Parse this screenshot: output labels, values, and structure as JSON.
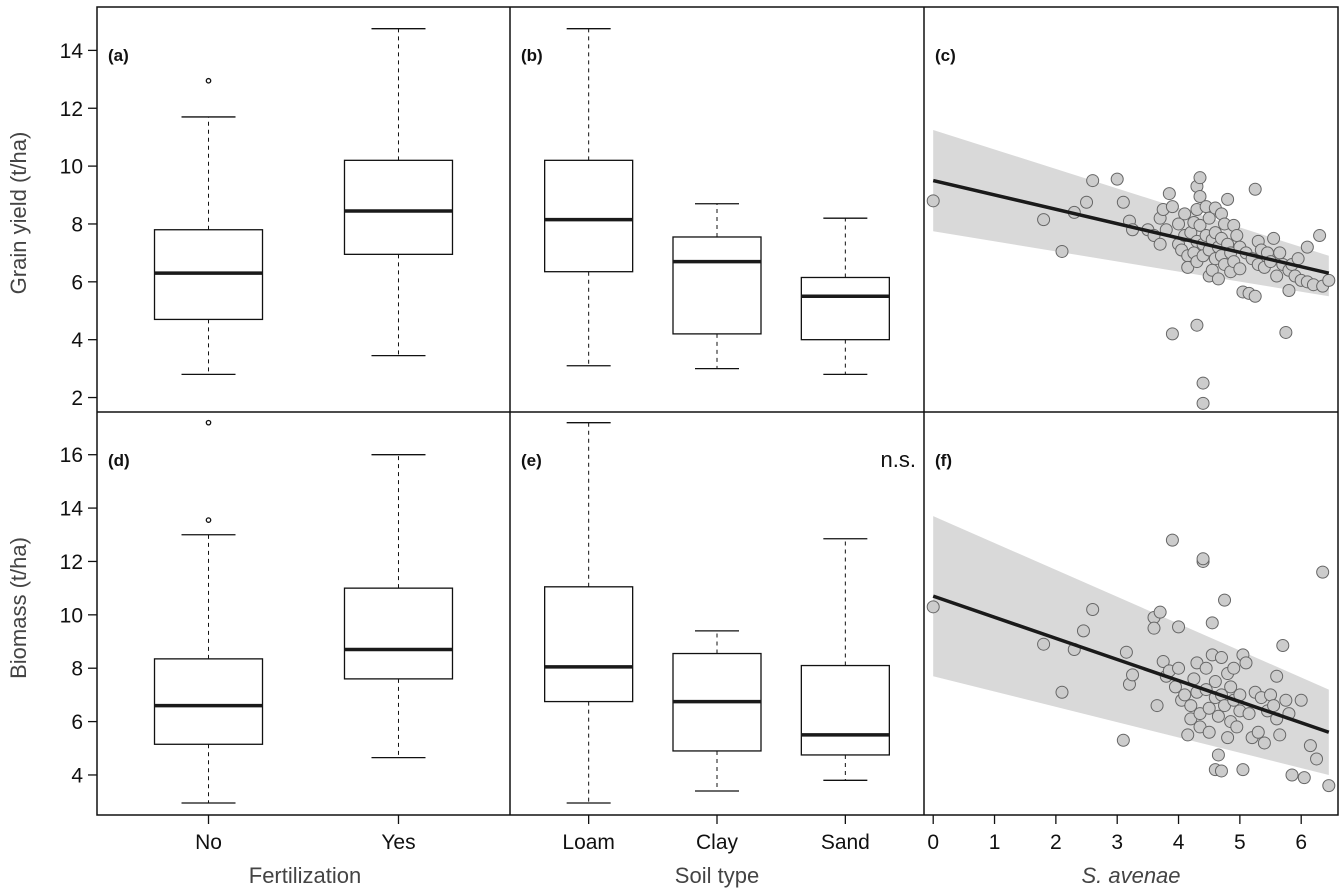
{
  "row_labels": [
    "Grain yield (t/ha)",
    "Biomass (t/ha)"
  ],
  "column_labels": [
    "Fertilization",
    "Soil type",
    "S. avenae"
  ],
  "colors": {
    "axis": "#111111",
    "box_fill": "#ffffff",
    "median": "#1a1a1a",
    "band": "#d9d9d9",
    "point_fill": "#cccccc",
    "point_stroke": "#666666",
    "line": "#1a1a1a"
  },
  "chart_data": [
    {
      "id": "a",
      "panel_label": "(a)",
      "annotation": "",
      "type": "box",
      "categories": [
        "No",
        "Yes"
      ],
      "xlabel": "Fertilization",
      "ylabel": "Grain yield (t/ha)",
      "yticks": [
        2,
        4,
        6,
        8,
        10,
        12,
        14
      ],
      "ylim": [
        1.5,
        15.5
      ],
      "boxes": [
        {
          "category": "No",
          "whisker_low": 2.8,
          "q1": 4.7,
          "median": 6.3,
          "q3": 7.8,
          "whisker_high": 11.7,
          "outliers": [
            12.95
          ]
        },
        {
          "category": "Yes",
          "whisker_low": 3.45,
          "q1": 6.95,
          "median": 8.45,
          "q3": 10.2,
          "whisker_high": 14.75,
          "outliers": []
        }
      ]
    },
    {
      "id": "b",
      "panel_label": "(b)",
      "annotation": "",
      "type": "box",
      "categories": [
        "Loam",
        "Clay",
        "Sand"
      ],
      "xlabel": "Soil type",
      "ylabel": "",
      "ylim": [
        1.5,
        15.5
      ],
      "boxes": [
        {
          "category": "Loam",
          "whisker_low": 3.1,
          "q1": 6.35,
          "median": 8.15,
          "q3": 10.2,
          "whisker_high": 14.75,
          "outliers": []
        },
        {
          "category": "Clay",
          "whisker_low": 3.0,
          "q1": 4.2,
          "median": 6.7,
          "q3": 7.55,
          "whisker_high": 8.7,
          "outliers": []
        },
        {
          "category": "Sand",
          "whisker_low": 2.8,
          "q1": 4.0,
          "median": 5.5,
          "q3": 6.15,
          "whisker_high": 8.2,
          "outliers": []
        }
      ]
    },
    {
      "id": "c",
      "panel_label": "(c)",
      "annotation": "",
      "type": "scatter",
      "xlabel": "S. avenae",
      "ylabel": "",
      "xticks": [
        0,
        1,
        2,
        3,
        4,
        5,
        6
      ],
      "xlim": [
        -0.15,
        6.6
      ],
      "ylim": [
        1.5,
        15.5
      ],
      "regression": {
        "x": [
          0,
          6.45
        ],
        "y": [
          9.5,
          6.3
        ]
      },
      "confidence_band": {
        "x": [
          0,
          6.45
        ],
        "upper": [
          11.25,
          6.9
        ],
        "lower": [
          7.75,
          5.5
        ]
      },
      "points": [
        [
          0,
          8.8
        ],
        [
          1.8,
          8.15
        ],
        [
          2.1,
          7.05
        ],
        [
          2.3,
          8.4
        ],
        [
          2.5,
          8.75
        ],
        [
          2.6,
          9.5
        ],
        [
          3.0,
          9.55
        ],
        [
          3.1,
          8.75
        ],
        [
          3.2,
          8.1
        ],
        [
          3.25,
          7.8
        ],
        [
          3.5,
          7.8
        ],
        [
          3.6,
          7.6
        ],
        [
          3.7,
          7.3
        ],
        [
          3.7,
          8.2
        ],
        [
          3.75,
          8.5
        ],
        [
          3.8,
          7.8
        ],
        [
          3.85,
          9.05
        ],
        [
          3.9,
          8.6
        ],
        [
          3.9,
          4.2
        ],
        [
          4.0,
          8.0
        ],
        [
          4.0,
          7.3
        ],
        [
          4.05,
          7.1
        ],
        [
          4.1,
          8.35
        ],
        [
          4.1,
          7.6
        ],
        [
          4.15,
          6.9
        ],
        [
          4.15,
          6.5
        ],
        [
          4.2,
          7.7
        ],
        [
          4.25,
          8.05
        ],
        [
          4.25,
          7.0
        ],
        [
          4.3,
          9.3
        ],
        [
          4.3,
          8.5
        ],
        [
          4.3,
          7.4
        ],
        [
          4.3,
          6.7
        ],
        [
          4.3,
          4.5
        ],
        [
          4.35,
          9.6
        ],
        [
          4.35,
          8.95
        ],
        [
          4.35,
          7.95
        ],
        [
          4.4,
          7.3
        ],
        [
          4.4,
          6.9
        ],
        [
          4.4,
          2.5
        ],
        [
          4.4,
          1.8
        ],
        [
          4.45,
          8.6
        ],
        [
          4.45,
          7.6
        ],
        [
          4.5,
          8.2
        ],
        [
          4.5,
          7.1
        ],
        [
          4.5,
          6.2
        ],
        [
          4.55,
          6.4
        ],
        [
          4.55,
          7.45
        ],
        [
          4.6,
          8.55
        ],
        [
          4.6,
          7.7
        ],
        [
          4.6,
          6.8
        ],
        [
          4.65,
          7.2
        ],
        [
          4.65,
          6.1
        ],
        [
          4.7,
          8.35
        ],
        [
          4.7,
          7.5
        ],
        [
          4.7,
          6.9
        ],
        [
          4.75,
          8.0
        ],
        [
          4.75,
          6.6
        ],
        [
          4.8,
          8.85
        ],
        [
          4.8,
          7.3
        ],
        [
          4.85,
          7.0
        ],
        [
          4.85,
          6.35
        ],
        [
          4.9,
          7.95
        ],
        [
          4.9,
          6.7
        ],
        [
          4.95,
          7.6
        ],
        [
          5.0,
          7.2
        ],
        [
          5.0,
          6.45
        ],
        [
          5.05,
          5.65
        ],
        [
          5.1,
          7.0
        ],
        [
          5.15,
          5.6
        ],
        [
          5.2,
          6.8
        ],
        [
          5.25,
          9.2
        ],
        [
          5.25,
          5.5
        ],
        [
          5.3,
          7.4
        ],
        [
          5.3,
          6.6
        ],
        [
          5.35,
          7.1
        ],
        [
          5.4,
          6.5
        ],
        [
          5.45,
          7.0
        ],
        [
          5.5,
          6.7
        ],
        [
          5.55,
          7.5
        ],
        [
          5.6,
          6.2
        ],
        [
          5.65,
          7.0
        ],
        [
          5.7,
          6.6
        ],
        [
          5.75,
          4.25
        ],
        [
          5.8,
          5.7
        ],
        [
          5.8,
          6.4
        ],
        [
          5.85,
          6.6
        ],
        [
          5.9,
          6.2
        ],
        [
          5.95,
          6.8
        ],
        [
          6.0,
          6.05
        ],
        [
          6.1,
          6.0
        ],
        [
          6.1,
          7.2
        ],
        [
          6.2,
          5.9
        ],
        [
          6.3,
          7.6
        ],
        [
          6.35,
          5.85
        ],
        [
          6.45,
          6.05
        ]
      ]
    },
    {
      "id": "d",
      "panel_label": "(d)",
      "annotation": "",
      "type": "box",
      "categories": [
        "No",
        "Yes"
      ],
      "xlabel": "Fertilization",
      "ylabel": "Biomass (t/ha)",
      "yticks": [
        4,
        6,
        8,
        10,
        12,
        14,
        16
      ],
      "ylim": [
        2.5,
        17.6
      ],
      "boxes": [
        {
          "category": "No",
          "whisker_low": 2.95,
          "q1": 5.15,
          "median": 6.6,
          "q3": 8.35,
          "whisker_high": 13.0,
          "outliers": [
            13.55,
            17.2
          ]
        },
        {
          "category": "Yes",
          "whisker_low": 4.65,
          "q1": 7.6,
          "median": 8.7,
          "q3": 11.0,
          "whisker_high": 16.0,
          "outliers": []
        }
      ]
    },
    {
      "id": "e",
      "panel_label": "(e)",
      "annotation": "n.s.",
      "type": "box",
      "categories": [
        "Loam",
        "Clay",
        "Sand"
      ],
      "xlabel": "Soil type",
      "ylabel": "",
      "ylim": [
        2.5,
        17.6
      ],
      "boxes": [
        {
          "category": "Loam",
          "whisker_low": 2.95,
          "q1": 6.75,
          "median": 8.05,
          "q3": 11.05,
          "whisker_high": 17.2,
          "outliers": []
        },
        {
          "category": "Clay",
          "whisker_low": 3.4,
          "q1": 4.9,
          "median": 6.75,
          "q3": 8.55,
          "whisker_high": 9.4,
          "outliers": []
        },
        {
          "category": "Sand",
          "whisker_low": 3.8,
          "q1": 4.75,
          "median": 5.5,
          "q3": 8.1,
          "whisker_high": 12.85,
          "outliers": []
        }
      ]
    },
    {
      "id": "f",
      "panel_label": "(f)",
      "annotation": "",
      "type": "scatter",
      "xlabel": "S. avenae",
      "ylabel": "",
      "xticks": [
        0,
        1,
        2,
        3,
        4,
        5,
        6
      ],
      "xlim": [
        -0.15,
        6.6
      ],
      "ylim": [
        2.5,
        17.6
      ],
      "regression": {
        "x": [
          0,
          6.45
        ],
        "y": [
          10.7,
          5.6
        ]
      },
      "confidence_band": {
        "x": [
          0,
          6.45
        ],
        "upper": [
          13.7,
          7.2
        ],
        "lower": [
          7.7,
          4.0
        ]
      },
      "points": [
        [
          0,
          10.3
        ],
        [
          1.8,
          8.9
        ],
        [
          2.1,
          7.1
        ],
        [
          2.3,
          8.7
        ],
        [
          2.45,
          9.4
        ],
        [
          2.6,
          10.2
        ],
        [
          3.1,
          5.3
        ],
        [
          3.15,
          8.6
        ],
        [
          3.2,
          7.4
        ],
        [
          3.25,
          7.75
        ],
        [
          3.6,
          9.9
        ],
        [
          3.6,
          9.5
        ],
        [
          3.65,
          6.6
        ],
        [
          3.7,
          10.1
        ],
        [
          3.75,
          8.25
        ],
        [
          3.8,
          7.7
        ],
        [
          3.85,
          7.9
        ],
        [
          3.9,
          12.8
        ],
        [
          3.95,
          7.3
        ],
        [
          4.0,
          9.55
        ],
        [
          4.0,
          8.0
        ],
        [
          4.05,
          6.8
        ],
        [
          4.1,
          7.0
        ],
        [
          4.15,
          5.5
        ],
        [
          4.2,
          6.1
        ],
        [
          4.2,
          6.6
        ],
        [
          4.25,
          7.6
        ],
        [
          4.3,
          8.2
        ],
        [
          4.3,
          7.1
        ],
        [
          4.35,
          6.3
        ],
        [
          4.35,
          5.8
        ],
        [
          4.4,
          12.0
        ],
        [
          4.4,
          12.1
        ],
        [
          4.45,
          8.0
        ],
        [
          4.45,
          7.2
        ],
        [
          4.5,
          6.5
        ],
        [
          4.5,
          5.6
        ],
        [
          4.55,
          9.7
        ],
        [
          4.55,
          8.5
        ],
        [
          4.6,
          7.5
        ],
        [
          4.6,
          6.9
        ],
        [
          4.6,
          4.2
        ],
        [
          4.65,
          4.75
        ],
        [
          4.65,
          6.2
        ],
        [
          4.7,
          8.4
        ],
        [
          4.7,
          7.0
        ],
        [
          4.7,
          4.15
        ],
        [
          4.75,
          10.55
        ],
        [
          4.75,
          6.6
        ],
        [
          4.8,
          7.8
        ],
        [
          4.8,
          5.4
        ],
        [
          4.85,
          6.0
        ],
        [
          4.85,
          7.3
        ],
        [
          4.9,
          8.0
        ],
        [
          4.9,
          6.8
        ],
        [
          4.95,
          5.8
        ],
        [
          5.0,
          7.0
        ],
        [
          5.0,
          6.4
        ],
        [
          5.05,
          8.5
        ],
        [
          5.05,
          4.2
        ],
        [
          5.1,
          8.2
        ],
        [
          5.15,
          6.3
        ],
        [
          5.2,
          5.4
        ],
        [
          5.25,
          7.1
        ],
        [
          5.3,
          5.6
        ],
        [
          5.35,
          6.9
        ],
        [
          5.4,
          5.2
        ],
        [
          5.45,
          6.4
        ],
        [
          5.5,
          7.0
        ],
        [
          5.55,
          6.6
        ],
        [
          5.6,
          7.7
        ],
        [
          5.6,
          6.1
        ],
        [
          5.65,
          5.5
        ],
        [
          5.7,
          8.85
        ],
        [
          5.75,
          6.8
        ],
        [
          5.8,
          6.3
        ],
        [
          5.85,
          4.0
        ],
        [
          6.0,
          6.8
        ],
        [
          6.05,
          3.9
        ],
        [
          6.15,
          5.1
        ],
        [
          6.25,
          4.6
        ],
        [
          6.35,
          11.6
        ],
        [
          6.45,
          3.6
        ]
      ]
    }
  ]
}
